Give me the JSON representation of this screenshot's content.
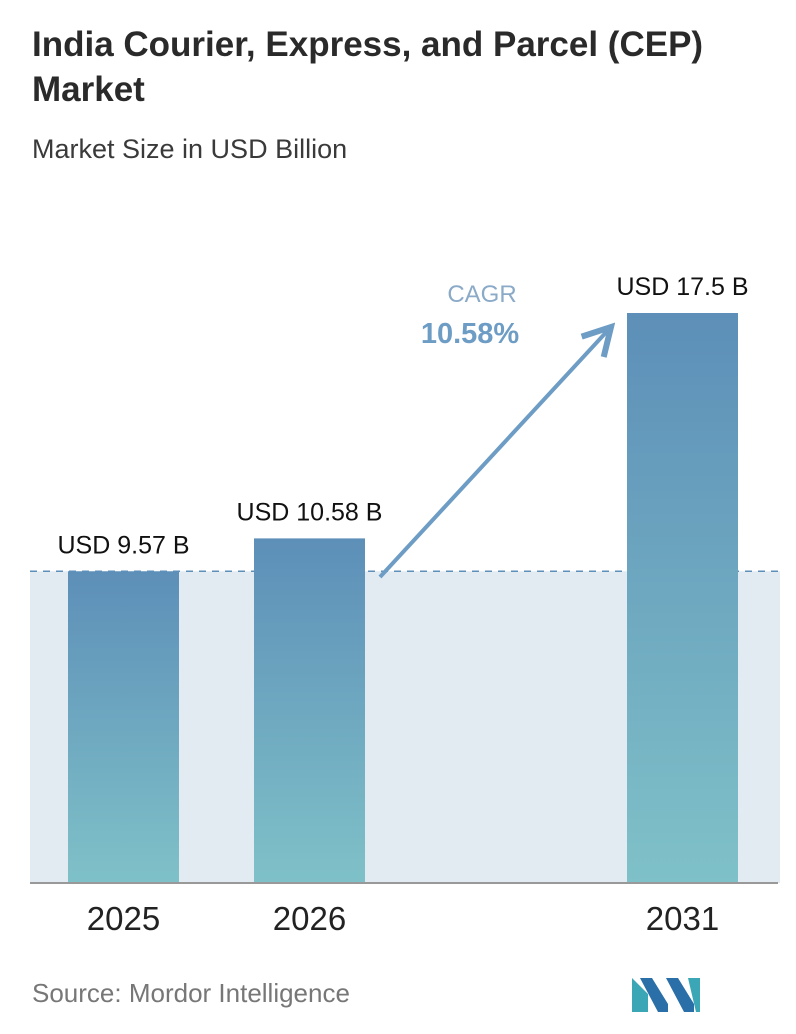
{
  "title": "India Courier, Express, and Parcel (CEP) Market",
  "subtitle": "Market Size in USD Billion",
  "source": "Source:  Mordor Intelligence",
  "colors": {
    "bar_top": "#5d8fb8",
    "bar_bottom": "#7fc1c8",
    "band": "#e2eaf2",
    "dashed_line": "#5d8fb8",
    "arrow": "#6d9cc4",
    "cagr_label": "#8aaac8",
    "cagr_value": "#6d9cc4",
    "axis": "#999999"
  },
  "chart_data": {
    "type": "bar",
    "categories": [
      "2025",
      "2026",
      "2031"
    ],
    "values": [
      9.57,
      10.58,
      17.5
    ],
    "data_labels": [
      "USD 9.57 B",
      "USD 10.58 B",
      "USD 17.5 B"
    ],
    "ylim": [
      0,
      17.5
    ],
    "reference_line": 9.57,
    "annotation": {
      "label": "CAGR",
      "value": "10.58%"
    }
  }
}
